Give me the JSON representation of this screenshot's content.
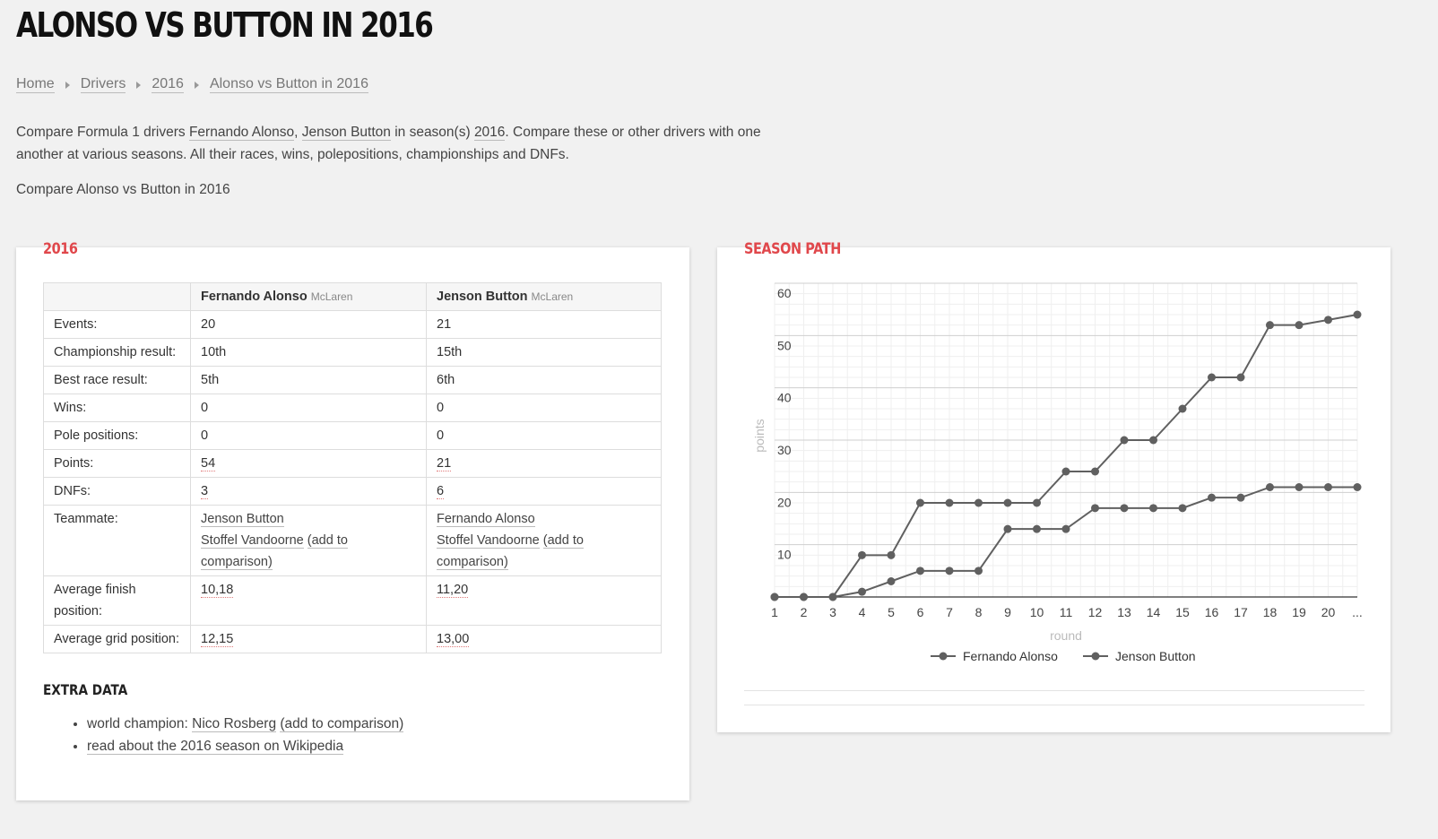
{
  "page": {
    "title": "ALONSO VS BUTTON IN 2016",
    "breadcrumb": [
      "Home",
      "Drivers",
      "2016",
      "Alonso vs Button in 2016"
    ],
    "intro": {
      "p1_a": "Compare Formula 1 drivers ",
      "driver1": "Fernando Alonso",
      "comma": ", ",
      "driver2": "Jenson Button",
      "p1_b": " in season(s) ",
      "season": "2016",
      "p1_c": ". Compare these or other drivers with one another at various seasons. All their races, wins, polepositions, championships and DNFs.",
      "p2": "Compare Alonso vs Button in 2016"
    }
  },
  "stats_card": {
    "title": "2016",
    "columns": [
      {
        "name": "Fernando Alonso",
        "team": "McLaren"
      },
      {
        "name": "Jenson Button",
        "team": "McLaren"
      }
    ],
    "rows": {
      "events": {
        "label": "Events:",
        "a": "20",
        "b": "21"
      },
      "championship": {
        "label": "Championship result:",
        "a": "10th",
        "b": "15th"
      },
      "best_race": {
        "label": "Best race result:",
        "a": "5th",
        "b": "6th"
      },
      "wins": {
        "label": "Wins:",
        "a": "0",
        "b": "0"
      },
      "poles": {
        "label": "Pole positions:",
        "a": "0",
        "b": "0"
      },
      "points": {
        "label": "Points:",
        "a": "54",
        "b": "21"
      },
      "dnfs": {
        "label": "DNFs:",
        "a": "3",
        "b": "6"
      },
      "teammate": {
        "label": "Teammate:",
        "a_name": "Jenson Button",
        "b_name": "Fernando Alonso",
        "other_name": "Stoffel Vandoorne",
        "add_text": "(add to comparison)"
      },
      "avg_finish": {
        "label": "Average finish position:",
        "a": "10,18",
        "b": "11,20"
      },
      "avg_grid": {
        "label": "Average grid position:",
        "a": "12,15",
        "b": "13,00"
      }
    },
    "extra": {
      "title": "EXTRA DATA",
      "champion_prefix": "world champion: ",
      "champion_name": "Nico Rosberg",
      "champion_add": "(add to comparison)",
      "wiki": "read about the 2016 season on Wikipedia"
    }
  },
  "chart_card": {
    "title": "SEASON PATH"
  },
  "chart_data": {
    "type": "line",
    "xlabel": "round",
    "ylabel": "points",
    "x": [
      "1",
      "2",
      "3",
      "4",
      "5",
      "6",
      "7",
      "8",
      "9",
      "10",
      "11",
      "12",
      "13",
      "14",
      "15",
      "16",
      "17",
      "18",
      "19",
      "20",
      "..."
    ],
    "yticks": [
      10,
      20,
      30,
      40,
      50,
      60
    ],
    "ylim": [
      0,
      60
    ],
    "grid": true,
    "legend": "bottom",
    "series": [
      {
        "name": "Fernando Alonso",
        "values": [
          0,
          0,
          0,
          8,
          8,
          18,
          18,
          18,
          18,
          18,
          24,
          24,
          30,
          30,
          36,
          42,
          42,
          52,
          52,
          53,
          54
        ]
      },
      {
        "name": "Jenson Button",
        "values": [
          0,
          0,
          0,
          1,
          3,
          5,
          5,
          5,
          13,
          13,
          13,
          17,
          17,
          17,
          17,
          19,
          19,
          21,
          21,
          21,
          21
        ]
      }
    ],
    "line_color": "#606060"
  }
}
